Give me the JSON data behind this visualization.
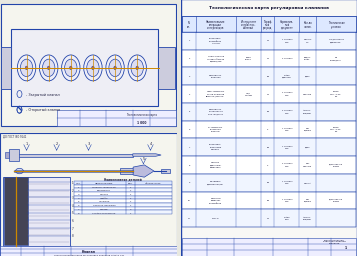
{
  "background": "#e8e8e0",
  "border_color": "#2244aa",
  "orange_color": "#cc8800",
  "title_right": "Технологическая карта регулировки клапанов",
  "colors": {
    "table_header_bg": "#ddeeff",
    "table_row_bg": "#ffffff",
    "table_alt_bg": "#f0f5ff",
    "table_border": "#2244aa",
    "left_bg": "#f5f5ee",
    "right_bg": "#f8f8f5"
  }
}
